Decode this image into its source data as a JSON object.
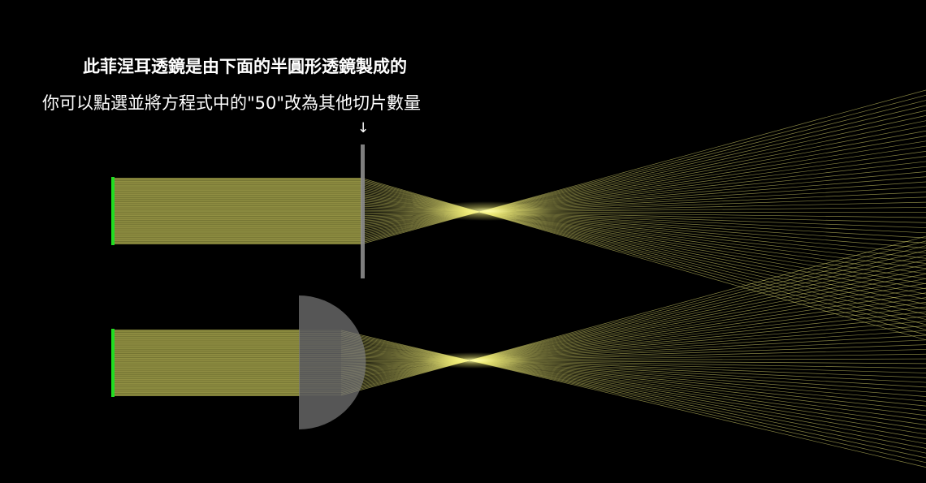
{
  "annotation": {
    "line1": "此菲涅耳透鏡是由下面的半圓形透鏡製成的",
    "line2": "你可以點選並將方程式中的\"50\"改為其他切片數量",
    "arrow": "↓"
  },
  "colors": {
    "background": "#000000",
    "ray": "#f2ef78",
    "beam_fill": "#8a8a3c",
    "source": "#22dd22",
    "lens": "#8c8c8c",
    "text": "#ffffff"
  },
  "diagram": {
    "description_slices": 50,
    "components": [
      {
        "name": "fresnel-lens",
        "kind": "flat fresnel lens"
      },
      {
        "name": "semicircular-lens",
        "kind": "plano-convex half-disc lens"
      }
    ]
  }
}
